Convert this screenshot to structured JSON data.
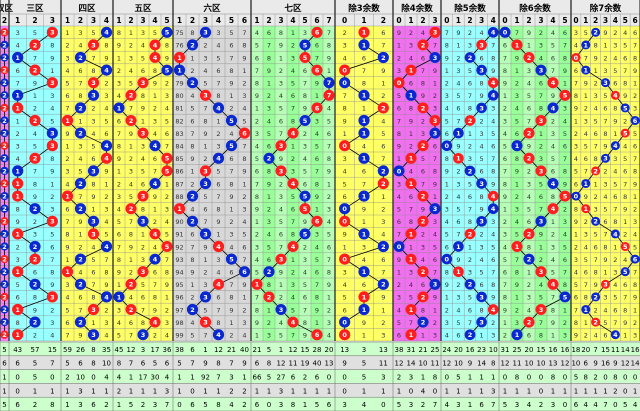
{
  "header": {
    "sections": [
      {
        "label": "双区",
        "cols": [
          "2"
        ]
      },
      {
        "label": "三区",
        "cols": [
          "1",
          "2",
          "3"
        ]
      },
      {
        "label": "四区",
        "cols": [
          "1",
          "2",
          "3",
          "4"
        ]
      },
      {
        "label": "五区",
        "cols": [
          "1",
          "2",
          "3",
          "4",
          "5"
        ]
      },
      {
        "label": "六区",
        "cols": [
          "1",
          "2",
          "3",
          "4",
          "5",
          "6"
        ]
      },
      {
        "label": "七区",
        "cols": [
          "1",
          "2",
          "3",
          "4",
          "5",
          "6",
          "7"
        ]
      },
      {
        "label": "除3余数",
        "cols": [
          "0",
          "1",
          "2"
        ]
      },
      {
        "label": "除4余数",
        "cols": [
          "0",
          "1",
          "2",
          "3"
        ]
      },
      {
        "label": "除5余数",
        "cols": [
          "0",
          "1",
          "2",
          "3",
          "4"
        ]
      },
      {
        "label": "除6余数",
        "cols": [
          "0",
          "1",
          "2",
          "3",
          "4",
          "5"
        ]
      },
      {
        "label": "除7余数",
        "cols": [
          "0",
          "1",
          "2",
          "3",
          "4",
          "5",
          "6"
        ]
      }
    ]
  },
  "grid": {
    "six_zone_numbers": [
      "75",
      "76",
      "77",
      "78",
      "79",
      "80",
      "81",
      "82",
      "83",
      "84",
      "85",
      "86",
      "87",
      "88",
      "89",
      "90",
      "91",
      "92",
      "93",
      "94",
      "95",
      "96",
      "97",
      "98",
      "99"
    ],
    "summary_rows": [
      {
        "cells": [
          "5",
          "43",
          "57",
          "15",
          "59",
          "26",
          "8",
          "35",
          "45",
          "12",
          "3",
          "17",
          "36",
          "38",
          "6",
          "1",
          "12",
          "21",
          "40",
          "21",
          "5",
          "1",
          "12",
          "15",
          "28",
          "20",
          "13",
          "3",
          "13",
          "38",
          "31",
          "21",
          "25",
          "24",
          "20",
          "16",
          "23",
          "10",
          "31",
          "25",
          "20",
          "15",
          "16",
          "16",
          "18",
          "20",
          "7",
          "15",
          "11",
          "14",
          "16"
        ]
      },
      {
        "cells": [
          "6",
          "6",
          "5",
          "7",
          "5",
          "6",
          "8",
          "10",
          "8",
          "7",
          "6",
          "5",
          "6",
          "5",
          "7",
          "9",
          "8",
          "7",
          "9",
          "6",
          "8",
          "12",
          "11",
          "19",
          "40",
          "13",
          "9",
          "5",
          "11",
          "12",
          "14",
          "10",
          "11",
          "12",
          "10",
          "9",
          "14",
          "8",
          "12",
          "11",
          "10",
          "10",
          "13",
          "12",
          "10",
          "6",
          "9",
          "16",
          "9",
          "12",
          "14"
        ]
      },
      {
        "cells": [
          "1",
          "0",
          "5",
          "0",
          "2",
          "10",
          "0",
          "4",
          "4",
          "1",
          "17",
          "30",
          "4",
          "1",
          "1",
          "92",
          "7",
          "3",
          "1",
          "66",
          "5",
          "27",
          "6",
          "2",
          "6",
          "0",
          "0",
          "5",
          "3",
          "2",
          "3",
          "1",
          "8",
          "0",
          "5",
          "1",
          "1",
          "1",
          "0",
          "8",
          "0",
          "0",
          "8",
          "0",
          "5",
          "8",
          "2",
          "0",
          "8",
          "0",
          "0"
        ]
      },
      {
        "cells": [
          "1",
          "0",
          "1",
          "1",
          "1",
          "3",
          "1",
          "1",
          "2",
          "1",
          "1",
          "1",
          "3",
          "1",
          "0",
          "1",
          "1",
          "2",
          "2",
          "1",
          "1",
          "3",
          "1",
          "1",
          "1",
          "1",
          "0",
          "1",
          "1",
          "1",
          "0",
          "4",
          "0",
          "1",
          "1",
          "1",
          "1",
          "3",
          "1",
          "1",
          "1",
          "0",
          "1",
          "1",
          "1",
          "1",
          "1",
          "1",
          "2",
          "0",
          "1"
        ]
      },
      {
        "cells": [
          "5",
          "6",
          "2",
          "8",
          "1",
          "3",
          "6",
          "2",
          "1",
          "5",
          "2",
          "3",
          "7",
          "0",
          "6",
          "5",
          "8",
          "4",
          "2",
          "6",
          "0",
          "3",
          "8",
          "1",
          "5",
          "6",
          "3",
          "4",
          "0",
          "5",
          "3",
          "2",
          "7",
          "4",
          "3",
          "1",
          "6",
          "7",
          "5",
          "3",
          "4",
          "2",
          "3",
          "0",
          "6",
          "4",
          "4",
          "7",
          "0",
          "5",
          "4"
        ]
      }
    ]
  },
  "colors": {
    "purple": "#ff80ff",
    "magenta_band": "#f070f0",
    "cyan_band": "#99ffff",
    "yellow_band": "#ffff66",
    "gray_band": "#d8d8d8",
    "green_band": "#99ff99",
    "light_green": "#ccffcc",
    "ball_red": "#ff1e1e",
    "ball_blue": "#0a28d0",
    "header_bg": "#eaeaea",
    "grid_line": "#8a8a8a"
  }
}
